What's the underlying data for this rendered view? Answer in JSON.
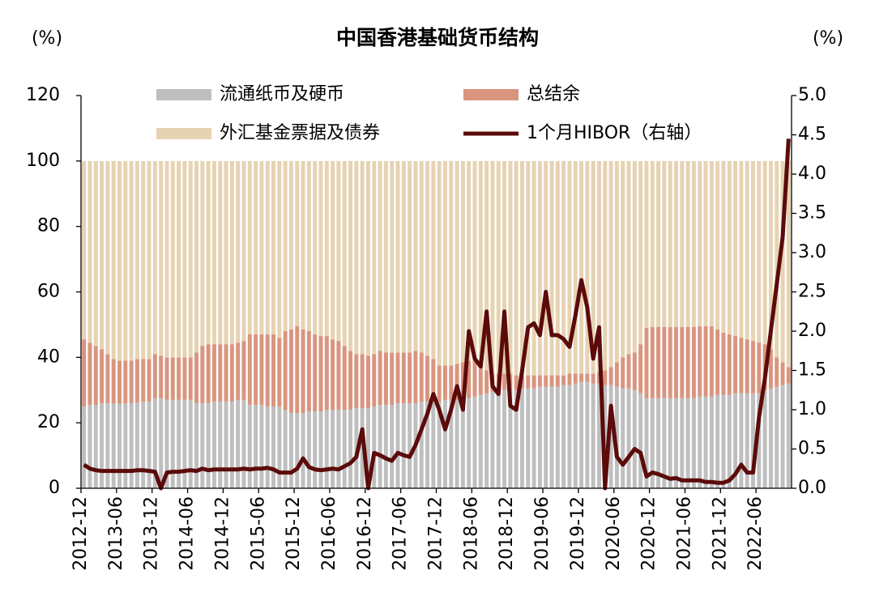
{
  "chart_data": {
    "type": "bar",
    "stacked": true,
    "title": "中国香港基础货币结构",
    "y_label": "(%)",
    "y2_label": "(%)",
    "categories": [
      "2012-12",
      null,
      null,
      null,
      null,
      null,
      "2013-06",
      null,
      null,
      null,
      null,
      null,
      "2013-12",
      null,
      null,
      null,
      null,
      null,
      "2014-06",
      null,
      null,
      null,
      null,
      null,
      "2014-12",
      null,
      null,
      null,
      null,
      null,
      "2015-06",
      null,
      null,
      null,
      null,
      null,
      "2015-12",
      null,
      null,
      null,
      null,
      null,
      "2016-06",
      null,
      null,
      null,
      null,
      null,
      "2016-12",
      null,
      null,
      null,
      null,
      null,
      "2017-06",
      null,
      null,
      null,
      null,
      null,
      "2017-12",
      null,
      null,
      null,
      null,
      null,
      "2018-06",
      null,
      null,
      null,
      null,
      null,
      "2018-12",
      null,
      null,
      null,
      null,
      null,
      "2019-06",
      null,
      null,
      null,
      null,
      null,
      "2019-12",
      null,
      null,
      null,
      null,
      null,
      "2020-06",
      null,
      null,
      null,
      null,
      null,
      "2020-12",
      null,
      null,
      null,
      null,
      null,
      "2021-06",
      null,
      null,
      null,
      null,
      null,
      "2021-12",
      null,
      null,
      null,
      null,
      null,
      "2022-06",
      null,
      null,
      null,
      null,
      null
    ],
    "series": [
      {
        "name": "流通纸币及硬币",
        "color": "#bfbfbf",
        "type": "bar",
        "values": [
          25,
          25.5,
          25.5,
          26,
          26,
          25.8,
          25.8,
          26,
          26,
          26.2,
          26.5,
          26.5,
          27.5,
          27.5,
          27,
          27,
          27,
          27,
          27,
          26,
          26,
          26,
          26.5,
          26.5,
          26.5,
          26.5,
          27,
          27,
          25.5,
          25.5,
          25.5,
          25,
          25,
          25,
          24,
          23,
          23,
          23,
          23.5,
          23.5,
          23.5,
          24,
          24,
          24,
          24,
          24,
          24.5,
          24.5,
          24.5,
          25,
          25.5,
          25.5,
          25.5,
          26,
          26,
          26,
          26,
          26.5,
          26.5,
          26.5,
          26.5,
          27,
          27,
          27,
          27.5,
          27.5,
          28,
          28.5,
          29,
          29.5,
          29.5,
          30,
          30,
          30,
          30.5,
          30.5,
          30.5,
          31,
          31,
          31,
          31,
          31.5,
          31.5,
          32,
          32.5,
          32.5,
          32,
          32,
          31.5,
          31.5,
          31,
          30.5,
          30.5,
          30,
          29,
          27.5,
          27.5,
          27.5,
          27.5,
          27.5,
          27.5,
          27.5,
          27.5,
          27.5,
          28,
          28,
          28,
          28.5,
          28.5,
          28.5,
          29,
          29,
          29,
          29,
          29,
          30,
          30.5,
          31,
          31.5,
          32
        ]
      },
      {
        "name": "总结余",
        "color": "#d9957f",
        "type": "bar",
        "values": [
          20.5,
          19,
          18,
          16.5,
          15,
          13.7,
          13.2,
          13,
          13,
          13.3,
          13,
          13,
          13.5,
          13,
          13,
          13,
          13,
          13,
          13,
          15.5,
          17.5,
          18,
          17.5,
          17.5,
          17.5,
          17.5,
          17.5,
          18,
          21.5,
          21.5,
          21.5,
          22,
          22,
          21,
          24,
          25.5,
          26.5,
          25.5,
          24.5,
          23.5,
          23,
          22.5,
          21.5,
          21,
          19.5,
          18,
          16.5,
          16.5,
          16,
          16,
          16.5,
          16,
          16,
          15.5,
          15.5,
          15.5,
          16,
          15,
          14,
          13,
          11,
          10.5,
          10.5,
          11,
          11,
          11.5,
          11.5,
          8.5,
          7,
          5.5,
          5.5,
          5,
          5,
          4.5,
          4,
          4,
          4,
          3.5,
          3.5,
          3.5,
          3.5,
          3,
          3.5,
          3,
          2.5,
          2.5,
          3,
          3.5,
          4.5,
          5.5,
          7.5,
          9.5,
          10.5,
          11.5,
          15,
          21.5,
          21.8,
          21.8,
          21.8,
          21.8,
          21.8,
          21.8,
          21.8,
          21.8,
          21.5,
          21.5,
          21.5,
          20,
          19,
          18.5,
          17.5,
          17,
          16.5,
          16,
          15.5,
          14,
          12,
          9,
          7,
          5
        ]
      },
      {
        "name": "外汇基金票据及债券",
        "color": "#e6d3b3",
        "type": "bar",
        "values": [
          54.5,
          55.5,
          56.5,
          57.5,
          59,
          60.5,
          61,
          61,
          61,
          60.5,
          60.5,
          60.5,
          59,
          59.5,
          60,
          60,
          60,
          60,
          60,
          58.5,
          56.5,
          56,
          56,
          56,
          56,
          56,
          55.5,
          55,
          53,
          53,
          53,
          53,
          53,
          54,
          52,
          51.5,
          50.5,
          51.5,
          52,
          53,
          53.5,
          53.5,
          54.5,
          55,
          56.5,
          58,
          59,
          59,
          59.5,
          59,
          58,
          58.5,
          58.5,
          58.5,
          58.5,
          58.5,
          58,
          58.5,
          59.5,
          60.5,
          62.5,
          62.5,
          62.5,
          62,
          61.5,
          61,
          60.5,
          63,
          64,
          65,
          65,
          65,
          65,
          65.5,
          65.5,
          65.5,
          65.5,
          65.5,
          65.5,
          65.5,
          65.5,
          65.5,
          65,
          65,
          65,
          65,
          65,
          64.5,
          64,
          63,
          61.5,
          60,
          59,
          58.5,
          56,
          51,
          50.7,
          50.7,
          50.7,
          50.7,
          50.7,
          50.7,
          50.7,
          50.7,
          50.5,
          50.5,
          50.5,
          51.5,
          52.5,
          53,
          53.5,
          54,
          54.5,
          55,
          55.5,
          56,
          57.5,
          60,
          61.5,
          63
        ]
      },
      {
        "name": "1个月HIBOR（右轴）",
        "color": "#5c0a0a",
        "type": "line",
        "axis": "y2",
        "values": [
          0.3,
          0.25,
          0.23,
          0.22,
          0.22,
          0.22,
          0.22,
          0.22,
          0.22,
          0.23,
          0.23,
          0.22,
          0.21,
          0.0,
          0.2,
          0.21,
          0.21,
          0.22,
          0.23,
          0.22,
          0.25,
          0.23,
          0.24,
          0.24,
          0.24,
          0.24,
          0.24,
          0.25,
          0.24,
          0.25,
          0.25,
          0.26,
          0.24,
          0.2,
          0.2,
          0.2,
          0.25,
          0.38,
          0.27,
          0.24,
          0.23,
          0.24,
          0.25,
          0.24,
          0.28,
          0.32,
          0.4,
          0.75,
          0.0,
          0.45,
          0.42,
          0.38,
          0.35,
          0.45,
          0.42,
          0.4,
          0.55,
          0.75,
          0.95,
          1.2,
          1.0,
          0.75,
          1.0,
          1.3,
          1.0,
          2.0,
          1.65,
          1.55,
          2.25,
          1.3,
          1.2,
          2.25,
          1.05,
          1.0,
          1.5,
          2.05,
          2.1,
          1.95,
          2.5,
          1.95,
          1.95,
          1.9,
          1.8,
          2.2,
          2.65,
          2.3,
          1.65,
          2.05,
          0.0,
          1.05,
          0.4,
          0.3,
          0.4,
          0.5,
          0.45,
          0.15,
          0.2,
          0.18,
          0.15,
          0.12,
          0.13,
          0.1,
          0.1,
          0.1,
          0.1,
          0.08,
          0.08,
          0.07,
          0.07,
          0.1,
          0.18,
          0.3,
          0.2,
          0.2,
          0.9,
          1.4,
          2.0,
          2.6,
          3.2,
          4.45
        ]
      }
    ],
    "ylim": [
      0,
      120
    ],
    "yticks": [
      0,
      20,
      40,
      60,
      80,
      100,
      120
    ],
    "y2lim": [
      0,
      5
    ],
    "y2ticks": [
      {
        "value": 0,
        "label": "0.0"
      },
      0.5,
      {
        "value": 1,
        "label": "1.0"
      },
      1.5,
      {
        "value": 2,
        "label": "2.0"
      },
      2.5,
      {
        "value": 3,
        "label": "3.0"
      },
      3.5,
      {
        "value": 4,
        "label": "4.0"
      },
      4.5,
      {
        "value": 5,
        "label": "5.0"
      }
    ],
    "grid": false,
    "legend_position": "top"
  }
}
